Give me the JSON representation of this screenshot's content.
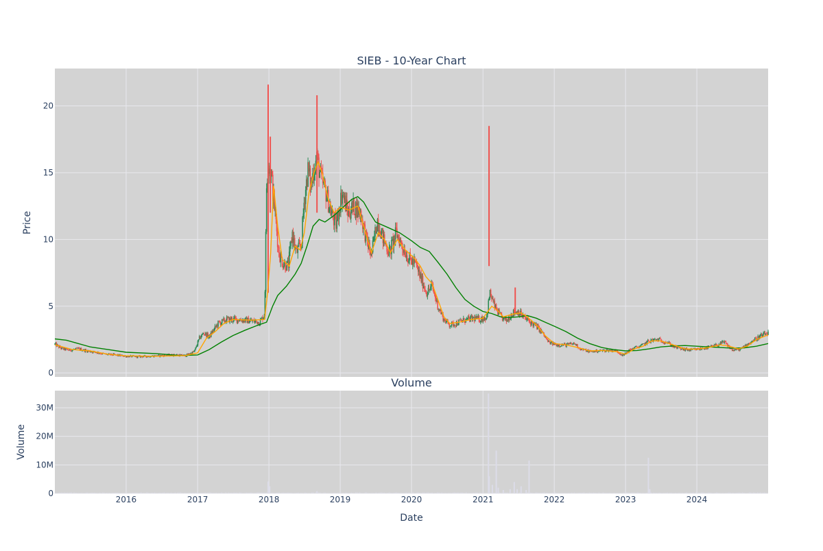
{
  "colors": {
    "page_bg": "#ffffff",
    "plot_bg": "#d3d3d3",
    "grid": "#e8e8ee",
    "text": "#2a3f5f",
    "candle_up": "#26a69a",
    "candle_up_display": "#2e8b57",
    "candle_down": "#ef5350",
    "ma_short": "#ffa500",
    "ma_long": "#008000",
    "volume_bar": "#dcdce8"
  },
  "chart_data": [
    {
      "type": "candlestick",
      "title": "SIEB - 10-Year Chart",
      "ylabel": "Price",
      "xlim": [
        "2015-01-01",
        "2024-12-31"
      ],
      "ylim": [
        -0.3,
        22.8
      ],
      "yticks": [
        0,
        5,
        10,
        15,
        20
      ],
      "grid": true,
      "legend": "none",
      "price_path": [
        [
          "2015-01-02",
          2.15
        ],
        [
          "2015-02-01",
          1.85
        ],
        [
          "2015-03-15",
          1.7
        ],
        [
          "2015-05-01",
          1.8
        ],
        [
          "2015-06-15",
          1.65
        ],
        [
          "2015-08-01",
          1.55
        ],
        [
          "2015-09-15",
          1.4
        ],
        [
          "2015-11-01",
          1.35
        ],
        [
          "2016-01-01",
          1.25
        ],
        [
          "2016-03-01",
          1.22
        ],
        [
          "2016-05-01",
          1.25
        ],
        [
          "2016-07-01",
          1.3
        ],
        [
          "2016-09-01",
          1.35
        ],
        [
          "2016-11-01",
          1.3
        ],
        [
          "2016-12-15",
          1.6
        ],
        [
          "2017-01-10",
          2.6
        ],
        [
          "2017-02-01",
          3.0
        ],
        [
          "2017-03-01",
          2.7
        ],
        [
          "2017-04-15",
          3.7
        ],
        [
          "2017-06-01",
          4.0
        ],
        [
          "2017-08-01",
          4.0
        ],
        [
          "2017-10-01",
          3.9
        ],
        [
          "2017-11-15",
          3.8
        ],
        [
          "2017-12-10",
          4.4
        ],
        [
          "2017-12-20",
          14.0
        ],
        [
          "2017-12-29",
          16.0
        ],
        [
          "2018-01-12",
          15.0
        ],
        [
          "2018-01-25",
          13.0
        ],
        [
          "2018-02-05",
          11.5
        ],
        [
          "2018-02-20",
          9.0
        ],
        [
          "2018-03-15",
          8.2
        ],
        [
          "2018-04-10",
          8.0
        ],
        [
          "2018-05-01",
          10.5
        ],
        [
          "2018-05-20",
          9.0
        ],
        [
          "2018-06-15",
          9.5
        ],
        [
          "2018-07-01",
          13.0
        ],
        [
          "2018-07-20",
          15.2
        ],
        [
          "2018-08-05",
          14.0
        ],
        [
          "2018-08-20",
          15.5
        ],
        [
          "2018-09-05",
          16.0
        ],
        [
          "2018-09-25",
          14.5
        ],
        [
          "2018-10-20",
          13.5
        ],
        [
          "2018-11-15",
          12.0
        ],
        [
          "2018-12-10",
          11.0
        ],
        [
          "2019-01-10",
          13.5
        ],
        [
          "2019-02-10",
          12.0
        ],
        [
          "2019-03-15",
          12.5
        ],
        [
          "2019-04-15",
          12.0
        ],
        [
          "2019-05-15",
          10.0
        ],
        [
          "2019-06-10",
          8.8
        ],
        [
          "2019-07-10",
          11.5
        ],
        [
          "2019-08-10",
          10.0
        ],
        [
          "2019-09-10",
          9.0
        ],
        [
          "2019-10-15",
          10.5
        ],
        [
          "2019-11-15",
          9.5
        ],
        [
          "2019-12-20",
          8.5
        ],
        [
          "2020-01-20",
          8.2
        ],
        [
          "2020-02-20",
          7.0
        ],
        [
          "2020-03-20",
          6.0
        ],
        [
          "2020-04-15",
          6.5
        ],
        [
          "2020-05-15",
          5.0
        ],
        [
          "2020-06-15",
          4.0
        ],
        [
          "2020-07-15",
          3.6
        ],
        [
          "2020-08-15",
          3.7
        ],
        [
          "2020-09-15",
          3.9
        ],
        [
          "2020-10-15",
          4.0
        ],
        [
          "2020-11-15",
          4.1
        ],
        [
          "2020-12-15",
          4.0
        ],
        [
          "2021-01-20",
          4.2
        ],
        [
          "2021-02-05",
          6.0
        ],
        [
          "2021-03-01",
          5.0
        ],
        [
          "2021-04-01",
          4.2
        ],
        [
          "2021-05-01",
          3.9
        ],
        [
          "2021-06-01",
          4.5
        ],
        [
          "2021-07-01",
          4.6
        ],
        [
          "2021-08-01",
          4.1
        ],
        [
          "2021-09-01",
          3.8
        ],
        [
          "2021-10-01",
          3.5
        ],
        [
          "2021-11-01",
          3.0
        ],
        [
          "2021-12-01",
          2.3
        ],
        [
          "2022-01-15",
          2.1
        ],
        [
          "2022-03-01",
          2.1
        ],
        [
          "2022-04-15",
          2.2
        ],
        [
          "2022-05-15",
          1.8
        ],
        [
          "2022-07-01",
          1.6
        ],
        [
          "2022-08-15",
          1.65
        ],
        [
          "2022-10-01",
          1.7
        ],
        [
          "2022-11-15",
          1.65
        ],
        [
          "2022-12-20",
          1.3
        ],
        [
          "2023-01-20",
          1.7
        ],
        [
          "2023-02-20",
          1.9
        ],
        [
          "2023-03-20",
          2.0
        ],
        [
          "2023-05-01",
          2.4
        ],
        [
          "2023-06-15",
          2.5
        ],
        [
          "2023-08-01",
          2.3
        ],
        [
          "2023-09-01",
          2.0
        ],
        [
          "2023-10-15",
          1.8
        ],
        [
          "2023-12-01",
          1.7
        ],
        [
          "2024-01-15",
          1.8
        ],
        [
          "2024-03-01",
          1.9
        ],
        [
          "2024-04-15",
          2.1
        ],
        [
          "2024-05-20",
          2.3
        ],
        [
          "2024-07-01",
          1.7
        ],
        [
          "2024-08-15",
          1.8
        ],
        [
          "2024-10-01",
          2.3
        ],
        [
          "2024-11-15",
          2.7
        ],
        [
          "2024-12-31",
          3.0
        ]
      ],
      "price_spikes": [
        {
          "date": "2017-12-28",
          "low": 6.0,
          "high": 21.6
        },
        {
          "date": "2018-01-08",
          "low": 12.0,
          "high": 17.7
        },
        {
          "date": "2018-09-04",
          "low": 12.0,
          "high": 20.8
        },
        {
          "date": "2021-02-01",
          "low": 8.0,
          "high": 18.5
        },
        {
          "date": "2021-06-15",
          "low": 4.5,
          "high": 6.4
        }
      ],
      "ma_short": [
        [
          "2015-01-02",
          2.1
        ],
        [
          "2015-04-01",
          1.75
        ],
        [
          "2015-07-01",
          1.65
        ],
        [
          "2015-10-01",
          1.4
        ],
        [
          "2016-01-01",
          1.28
        ],
        [
          "2016-06-01",
          1.25
        ],
        [
          "2016-11-01",
          1.3
        ],
        [
          "2017-01-01",
          1.5
        ],
        [
          "2017-02-15",
          2.6
        ],
        [
          "2017-04-01",
          3.1
        ],
        [
          "2017-05-15",
          3.7
        ],
        [
          "2017-07-01",
          4.0
        ],
        [
          "2017-10-01",
          3.95
        ],
        [
          "2017-12-10",
          4.0
        ],
        [
          "2017-12-25",
          6.0
        ],
        [
          "2018-01-10",
          9.0
        ],
        [
          "2018-01-25",
          14.0
        ],
        [
          "2018-02-15",
          11.0
        ],
        [
          "2018-03-10",
          8.5
        ],
        [
          "2018-04-15",
          8.0
        ],
        [
          "2018-05-15",
          9.5
        ],
        [
          "2018-06-10",
          9.2
        ],
        [
          "2018-07-01",
          10.5
        ],
        [
          "2018-07-25",
          13.5
        ],
        [
          "2018-08-20",
          15.0
        ],
        [
          "2018-09-10",
          15.8
        ],
        [
          "2018-09-30",
          15.0
        ],
        [
          "2018-11-01",
          13.0
        ],
        [
          "2018-12-01",
          12.0
        ],
        [
          "2019-01-01",
          12.4
        ],
        [
          "2019-02-15",
          12.2
        ],
        [
          "2019-04-01",
          12.5
        ],
        [
          "2019-05-01",
          11.0
        ],
        [
          "2019-06-10",
          9.0
        ],
        [
          "2019-07-15",
          10.5
        ],
        [
          "2019-08-15",
          10.0
        ],
        [
          "2019-09-15",
          9.0
        ],
        [
          "2019-10-20",
          10.0
        ],
        [
          "2019-12-01",
          9.2
        ],
        [
          "2020-01-15",
          8.6
        ],
        [
          "2020-02-15",
          8.0
        ],
        [
          "2020-03-15",
          7.2
        ],
        [
          "2020-04-15",
          6.7
        ],
        [
          "2020-05-15",
          5.5
        ],
        [
          "2020-06-15",
          4.2
        ],
        [
          "2020-07-15",
          3.7
        ],
        [
          "2020-09-01",
          3.8
        ],
        [
          "2020-11-01",
          4.0
        ],
        [
          "2021-01-01",
          4.1
        ],
        [
          "2021-02-15",
          5.0
        ],
        [
          "2021-03-15",
          4.7
        ],
        [
          "2021-04-15",
          4.2
        ],
        [
          "2021-06-01",
          4.4
        ],
        [
          "2021-07-15",
          4.5
        ],
        [
          "2021-08-15",
          4.2
        ],
        [
          "2021-10-01",
          3.6
        ],
        [
          "2021-11-15",
          2.8
        ],
        [
          "2022-01-01",
          2.2
        ],
        [
          "2022-03-01",
          2.1
        ],
        [
          "2022-05-01",
          1.9
        ],
        [
          "2022-07-01",
          1.65
        ],
        [
          "2022-09-01",
          1.68
        ],
        [
          "2022-11-15",
          1.6
        ],
        [
          "2023-01-01",
          1.4
        ],
        [
          "2023-02-15",
          1.8
        ],
        [
          "2023-04-01",
          2.0
        ],
        [
          "2023-05-15",
          2.4
        ],
        [
          "2023-07-01",
          2.4
        ],
        [
          "2023-09-01",
          2.1
        ],
        [
          "2023-11-01",
          1.8
        ],
        [
          "2024-01-01",
          1.78
        ],
        [
          "2024-03-01",
          1.9
        ],
        [
          "2024-05-01",
          2.1
        ],
        [
          "2024-06-15",
          2.0
        ],
        [
          "2024-08-01",
          1.8
        ],
        [
          "2024-09-15",
          2.0
        ],
        [
          "2024-11-01",
          2.5
        ],
        [
          "2024-12-31",
          2.85
        ]
      ],
      "ma_long": [
        [
          "2015-01-01",
          2.55
        ],
        [
          "2015-03-01",
          2.45
        ],
        [
          "2015-05-01",
          2.2
        ],
        [
          "2015-07-01",
          1.95
        ],
        [
          "2015-10-01",
          1.75
        ],
        [
          "2016-01-01",
          1.55
        ],
        [
          "2016-06-01",
          1.45
        ],
        [
          "2016-10-01",
          1.3
        ],
        [
          "2017-01-01",
          1.35
        ],
        [
          "2017-03-01",
          1.75
        ],
        [
          "2017-05-01",
          2.3
        ],
        [
          "2017-07-01",
          2.8
        ],
        [
          "2017-09-01",
          3.2
        ],
        [
          "2017-11-01",
          3.55
        ],
        [
          "2017-12-20",
          3.8
        ],
        [
          "2018-01-20",
          5.0
        ],
        [
          "2018-02-15",
          5.8
        ],
        [
          "2018-04-01",
          6.5
        ],
        [
          "2018-05-15",
          7.4
        ],
        [
          "2018-06-15",
          8.2
        ],
        [
          "2018-07-15",
          9.5
        ],
        [
          "2018-08-15",
          11.0
        ],
        [
          "2018-09-15",
          11.5
        ],
        [
          "2018-10-15",
          11.3
        ],
        [
          "2018-12-01",
          11.8
        ],
        [
          "2019-01-15",
          12.4
        ],
        [
          "2019-03-01",
          13.0
        ],
        [
          "2019-04-01",
          13.2
        ],
        [
          "2019-05-01",
          12.8
        ],
        [
          "2019-06-01",
          12.0
        ],
        [
          "2019-07-01",
          11.3
        ],
        [
          "2019-09-01",
          10.9
        ],
        [
          "2019-11-01",
          10.5
        ],
        [
          "2020-01-01",
          9.9
        ],
        [
          "2020-02-15",
          9.4
        ],
        [
          "2020-04-01",
          9.1
        ],
        [
          "2020-05-15",
          8.3
        ],
        [
          "2020-07-01",
          7.4
        ],
        [
          "2020-08-15",
          6.4
        ],
        [
          "2020-10-01",
          5.5
        ],
        [
          "2020-11-15",
          5.0
        ],
        [
          "2021-01-01",
          4.6
        ],
        [
          "2021-02-15",
          4.45
        ],
        [
          "2021-04-01",
          4.2
        ],
        [
          "2021-05-15",
          4.15
        ],
        [
          "2021-07-01",
          4.2
        ],
        [
          "2021-08-15",
          4.3
        ],
        [
          "2021-10-01",
          4.1
        ],
        [
          "2021-11-15",
          3.8
        ],
        [
          "2022-01-01",
          3.5
        ],
        [
          "2022-03-01",
          3.1
        ],
        [
          "2022-05-01",
          2.6
        ],
        [
          "2022-07-01",
          2.2
        ],
        [
          "2022-09-01",
          1.9
        ],
        [
          "2022-11-01",
          1.75
        ],
        [
          "2023-01-01",
          1.65
        ],
        [
          "2023-03-01",
          1.68
        ],
        [
          "2023-05-01",
          1.8
        ],
        [
          "2023-07-01",
          1.95
        ],
        [
          "2023-09-01",
          2.02
        ],
        [
          "2023-11-01",
          2.05
        ],
        [
          "2024-01-01",
          2.0
        ],
        [
          "2024-03-01",
          1.95
        ],
        [
          "2024-05-01",
          1.9
        ],
        [
          "2024-07-01",
          1.85
        ],
        [
          "2024-09-01",
          1.88
        ],
        [
          "2024-11-01",
          2.0
        ],
        [
          "2024-12-31",
          2.2
        ]
      ]
    },
    {
      "type": "bar",
      "title": "Volume",
      "xlabel": "Date",
      "ylabel": "Volume",
      "ylim": [
        0,
        36000000
      ],
      "yticks": [
        0,
        10000000,
        20000000,
        30000000
      ],
      "ytick_labels": [
        "0",
        "10M",
        "20M",
        "30M"
      ],
      "xticks": [
        "2016-01-01",
        "2017-01-01",
        "2018-01-01",
        "2019-01-01",
        "2020-01-01",
        "2021-01-01",
        "2022-01-01",
        "2023-01-01",
        "2024-01-01"
      ],
      "xtick_labels": [
        "2016",
        "2017",
        "2018",
        "2019",
        "2020",
        "2021",
        "2022",
        "2023",
        "2024"
      ],
      "grid": true,
      "volume_spikes": [
        [
          "2017-12-28",
          4200000
        ],
        [
          "2018-01-05",
          2500000
        ],
        [
          "2018-09-04",
          800000
        ],
        [
          "2021-01-29",
          35000000
        ],
        [
          "2021-02-02",
          6000000
        ],
        [
          "2021-02-18",
          3000000
        ],
        [
          "2021-03-10",
          15000000
        ],
        [
          "2021-03-20",
          2000000
        ],
        [
          "2021-04-15",
          1200000
        ],
        [
          "2021-05-20",
          1500000
        ],
        [
          "2021-06-10",
          4000000
        ],
        [
          "2021-06-25",
          1500000
        ],
        [
          "2021-07-15",
          2500000
        ],
        [
          "2021-08-10",
          1200000
        ],
        [
          "2021-08-25",
          11500000
        ],
        [
          "2023-04-28",
          12500000
        ],
        [
          "2023-05-05",
          1500000
        ]
      ]
    }
  ]
}
